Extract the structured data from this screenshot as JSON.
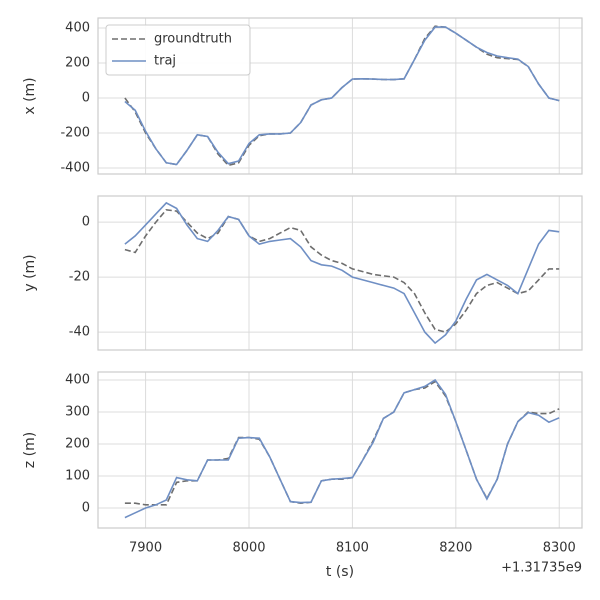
{
  "chart_data": [
    {
      "type": "line",
      "ylabel": "x (m)",
      "legend": "upper left",
      "grid": true,
      "x": [
        7880,
        7890,
        7900,
        7910,
        7920,
        7930,
        7940,
        7950,
        7960,
        7970,
        7980,
        7990,
        8000,
        8010,
        8020,
        8030,
        8040,
        8050,
        8060,
        8070,
        8080,
        8090,
        8100,
        8110,
        8120,
        8130,
        8140,
        8150,
        8160,
        8170,
        8180,
        8190,
        8200,
        8210,
        8220,
        8230,
        8240,
        8250,
        8260,
        8270,
        8280,
        8290,
        8300
      ],
      "xlim": [
        7854,
        8322
      ],
      "xticks": [
        7900,
        8000,
        8100,
        8200,
        8300
      ],
      "ylim": [
        -434,
        457
      ],
      "yticks": [
        -400,
        -200,
        0,
        200,
        400
      ],
      "series": [
        {
          "name": "groundtruth",
          "color": "#6e6e6e",
          "dashed": true,
          "values": [
            0,
            -80,
            -200,
            -290,
            -370,
            -380,
            -300,
            -210,
            -220,
            -320,
            -385,
            -370,
            -270,
            -215,
            -205,
            -205,
            -200,
            -140,
            -40,
            -10,
            0,
            60,
            108,
            110,
            108,
            106,
            105,
            110,
            220,
            340,
            410,
            405,
            370,
            330,
            290,
            250,
            230,
            225,
            220,
            180,
            80,
            0,
            -15
          ]
        },
        {
          "name": "traj",
          "color": "#6f8fc4",
          "dashed": false,
          "values": [
            -20,
            -70,
            -190,
            -290,
            -370,
            -380,
            -300,
            -210,
            -220,
            -310,
            -375,
            -360,
            -260,
            -210,
            -205,
            -205,
            -200,
            -140,
            -40,
            -10,
            0,
            60,
            108,
            110,
            108,
            106,
            105,
            110,
            220,
            330,
            405,
            405,
            370,
            330,
            290,
            260,
            240,
            230,
            222,
            180,
            80,
            0,
            -15
          ]
        }
      ]
    },
    {
      "type": "line",
      "ylabel": "y (m)",
      "grid": true,
      "x": [
        7880,
        7890,
        7900,
        7910,
        7920,
        7930,
        7940,
        7950,
        7960,
        7970,
        7980,
        7990,
        8000,
        8010,
        8020,
        8030,
        8040,
        8050,
        8060,
        8070,
        8080,
        8090,
        8100,
        8110,
        8120,
        8130,
        8140,
        8150,
        8160,
        8170,
        8180,
        8190,
        8200,
        8210,
        8220,
        8230,
        8240,
        8250,
        8260,
        8270,
        8280,
        8290,
        8300
      ],
      "xlim": [
        7854,
        8322
      ],
      "xticks": [
        7900,
        8000,
        8100,
        8200,
        8300
      ],
      "ylim": [
        -46.5,
        9.5
      ],
      "yticks": [
        -40,
        -20,
        0
      ],
      "series": [
        {
          "color": "#6e6e6e",
          "dashed": true,
          "values": [
            -10,
            -11,
            -5,
            0,
            4.5,
            4,
            0,
            -4,
            -6,
            -4,
            2,
            1,
            -5,
            -7,
            -6,
            -4,
            -2,
            -3,
            -9,
            -12,
            -14,
            -15,
            -17,
            -18,
            -19,
            -19.5,
            -20,
            -22,
            -26,
            -33,
            -39,
            -40,
            -37,
            -32,
            -26,
            -23,
            -22,
            -24,
            -26,
            -25,
            -21,
            -17,
            -17
          ]
        },
        {
          "color": "#6f8fc4",
          "dashed": false,
          "values": [
            -8,
            -5,
            -1,
            3,
            7,
            5,
            -1,
            -6,
            -7,
            -3,
            2,
            1,
            -5,
            -8,
            -7,
            -6.5,
            -6,
            -9,
            -14,
            -15.5,
            -16,
            -17.5,
            -20,
            -21,
            -22,
            -23,
            -24,
            -26,
            -33,
            -40,
            -44,
            -41,
            -36,
            -28,
            -21,
            -19,
            -21,
            -23,
            -26,
            -17,
            -8,
            -3,
            -3.5
          ]
        }
      ]
    },
    {
      "type": "line",
      "ylabel": "z (m)",
      "xlabel": "t (s)",
      "x_offset": "+1.31735e9",
      "grid": true,
      "x": [
        7880,
        7890,
        7900,
        7910,
        7920,
        7930,
        7940,
        7950,
        7960,
        7970,
        7980,
        7990,
        8000,
        8010,
        8020,
        8030,
        8040,
        8050,
        8060,
        8070,
        8080,
        8090,
        8100,
        8110,
        8120,
        8130,
        8140,
        8150,
        8160,
        8170,
        8180,
        8190,
        8200,
        8210,
        8220,
        8230,
        8240,
        8250,
        8260,
        8270,
        8280,
        8290,
        8300
      ],
      "xlim": [
        7854,
        8322
      ],
      "xticks": [
        7900,
        8000,
        8100,
        8200,
        8300
      ],
      "ylim": [
        -62.5,
        425
      ],
      "yticks": [
        0,
        100,
        200,
        300,
        400
      ],
      "series": [
        {
          "color": "#6e6e6e",
          "dashed": true,
          "values": [
            15,
            15,
            10,
            10,
            10,
            80,
            85,
            85,
            150,
            150,
            155,
            220,
            220,
            215,
            160,
            90,
            20,
            15,
            18,
            85,
            90,
            90,
            95,
            150,
            210,
            280,
            300,
            360,
            370,
            375,
            395,
            350,
            270,
            180,
            90,
            30,
            90,
            200,
            270,
            300,
            295,
            295,
            310
          ]
        },
        {
          "color": "#6f8fc4",
          "dashed": false,
          "values": [
            -30,
            -15,
            0,
            10,
            25,
            95,
            88,
            85,
            150,
            150,
            150,
            218,
            220,
            218,
            160,
            90,
            20,
            17,
            18,
            85,
            90,
            92,
            95,
            150,
            205,
            280,
            300,
            360,
            370,
            380,
            400,
            355,
            270,
            180,
            90,
            28,
            90,
            200,
            270,
            298,
            290,
            268,
            282
          ]
        }
      ]
    }
  ]
}
